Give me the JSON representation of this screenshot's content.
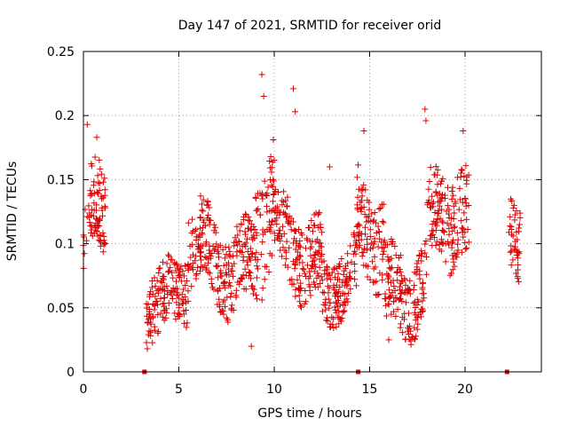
{
  "chart_data": {
    "type": "scatter",
    "title": "Day 147 of 2021, SRMTID for receiver orid",
    "xlabel": "GPS time / hours",
    "ylabel": "SRMTID / TECUs",
    "xlim": [
      0,
      24
    ],
    "ylim": [
      0,
      0.25
    ],
    "xticks": [
      "0",
      "5",
      "10",
      "15",
      "20"
    ],
    "yticks": [
      "0",
      "0.05",
      "0.1",
      "0.15",
      "0.2",
      "0.25"
    ],
    "grid": true,
    "legend": "none",
    "marker": "plus",
    "color": "#dd0000",
    "baseline_markers_x": [
      3.2,
      14.4,
      22.2
    ],
    "segments": [
      {
        "t0": 0.0,
        "t1": 1.2,
        "base": 0.105,
        "amp": 0.04,
        "spread": 0.035
      },
      {
        "t0": 3.3,
        "t1": 5.5,
        "base": 0.06,
        "amp": 0.015,
        "spread": 0.025
      },
      {
        "t0": 5.5,
        "t1": 9.0,
        "base": 0.09,
        "amp": 0.025,
        "spread": 0.03
      },
      {
        "t0": 9.0,
        "t1": 10.0,
        "base": 0.11,
        "amp": 0.04,
        "spread": 0.045
      },
      {
        "t0": 10.0,
        "t1": 12.5,
        "base": 0.095,
        "amp": 0.025,
        "spread": 0.03
      },
      {
        "t0": 12.5,
        "t1": 14.3,
        "base": 0.07,
        "amp": 0.02,
        "spread": 0.025
      },
      {
        "t0": 14.3,
        "t1": 15.8,
        "base": 0.1,
        "amp": 0.03,
        "spread": 0.035
      },
      {
        "t0": 15.8,
        "t1": 18.0,
        "base": 0.07,
        "amp": 0.02,
        "spread": 0.03
      },
      {
        "t0": 18.0,
        "t1": 20.2,
        "base": 0.11,
        "amp": 0.03,
        "spread": 0.035
      },
      {
        "t0": 22.3,
        "t1": 22.9,
        "base": 0.1,
        "amp": 0.03,
        "spread": 0.03
      }
    ],
    "outliers": [
      {
        "x": 0.2,
        "y": 0.193
      },
      {
        "x": 0.7,
        "y": 0.183
      },
      {
        "x": 3.35,
        "y": 0.018
      },
      {
        "x": 9.35,
        "y": 0.232
      },
      {
        "x": 9.45,
        "y": 0.215
      },
      {
        "x": 11.0,
        "y": 0.221
      },
      {
        "x": 11.1,
        "y": 0.203
      },
      {
        "x": 12.9,
        "y": 0.16
      },
      {
        "x": 14.7,
        "y": 0.188
      },
      {
        "x": 17.9,
        "y": 0.205
      },
      {
        "x": 17.95,
        "y": 0.196
      },
      {
        "x": 19.9,
        "y": 0.188
      },
      {
        "x": 8.8,
        "y": 0.02
      },
      {
        "x": 16.0,
        "y": 0.025
      }
    ]
  }
}
